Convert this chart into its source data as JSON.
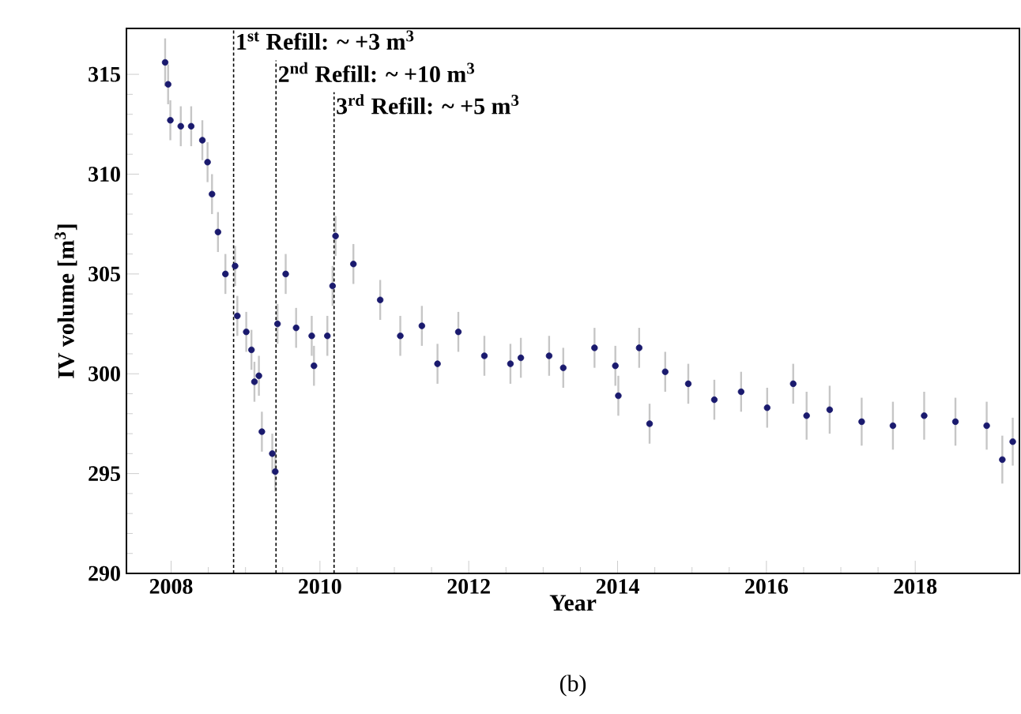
{
  "chart_data": {
    "type": "scatter",
    "xlabel": "Year",
    "ylabel": "IV volume [m$^{3}$]",
    "xlim": [
      2007.4,
      2019.4
    ],
    "ylim": [
      290,
      317.3
    ],
    "xticks": [
      2008,
      2010,
      2012,
      2014,
      2016,
      2018
    ],
    "yticks": [
      290,
      295,
      300,
      305,
      310,
      315
    ],
    "ref_lines": [
      {
        "axis": "x",
        "value": 2008.84,
        "label": "1$^{st}$ Refill: ~ +3 m$^{3}$",
        "line_style": "dashed",
        "color": "#000000"
      },
      {
        "axis": "x",
        "value": 2009.41,
        "label": "2$^{nd}$ Refill: ~ +10 m$^{3}$",
        "line_style": "dashed",
        "color": "#000000"
      },
      {
        "axis": "x",
        "value": 2010.19,
        "label": "3$^{rd}$ Refill: ~ +5 m$^{3}$",
        "line_style": "dashed",
        "color": "#000000"
      }
    ],
    "annotations": [
      "(b)"
    ],
    "series": [
      {
        "color": "#1a1a6e",
        "x": [
          2007.92,
          2007.96,
          2007.99,
          2008.13,
          2008.27,
          2008.42,
          2008.49,
          2008.55,
          2008.63,
          2008.73,
          2008.86,
          2008.89,
          2009.01,
          2009.08,
          2009.12,
          2009.18,
          2009.22,
          2009.36,
          2009.4,
          2009.43,
          2009.54,
          2009.68,
          2009.89,
          2009.92,
          2010.1,
          2010.17,
          2010.21,
          2010.45,
          2010.81,
          2011.08,
          2011.37,
          2011.58,
          2011.86,
          2012.21,
          2012.56,
          2012.7,
          2013.08,
          2013.27,
          2013.69,
          2013.97,
          2014.01,
          2014.29,
          2014.43,
          2014.64,
          2014.95,
          2015.3,
          2015.66,
          2016.01,
          2016.36,
          2016.54,
          2016.85,
          2017.28,
          2017.7,
          2018.12,
          2018.54,
          2018.96,
          2019.17,
          2019.31
        ],
        "values": [
          315.6,
          314.5,
          312.7,
          312.4,
          312.4,
          311.7,
          310.6,
          309.0,
          307.1,
          305.0,
          305.4,
          302.9,
          302.1,
          301.2,
          299.6,
          299.9,
          297.1,
          296.0,
          295.1,
          302.5,
          305.0,
          302.3,
          301.9,
          300.4,
          301.9,
          304.4,
          306.9,
          305.5,
          303.7,
          301.9,
          302.4,
          300.5,
          302.1,
          300.9,
          300.5,
          300.8,
          300.9,
          300.3,
          301.3,
          300.4,
          298.9,
          301.3,
          297.5,
          300.1,
          299.5,
          298.7,
          299.1,
          298.3,
          299.5,
          297.9,
          298.2,
          297.6,
          297.4,
          297.9,
          297.6,
          297.4,
          295.7,
          296.6
        ],
        "errors": [
          1.2,
          1,
          1,
          1,
          1,
          1,
          1,
          1,
          1,
          1,
          1,
          1,
          1,
          1,
          1,
          1,
          1,
          1,
          1,
          1,
          1,
          1,
          1,
          1,
          1,
          1,
          1,
          1,
          1,
          1,
          1,
          1,
          1,
          1,
          1,
          1,
          1,
          1,
          1,
          1,
          1,
          1,
          1,
          1,
          1,
          1,
          1,
          1,
          1,
          1.2,
          1.2,
          1.2,
          1.2,
          1.2,
          1.2,
          1.2,
          1.2,
          1.2
        ]
      }
    ]
  }
}
